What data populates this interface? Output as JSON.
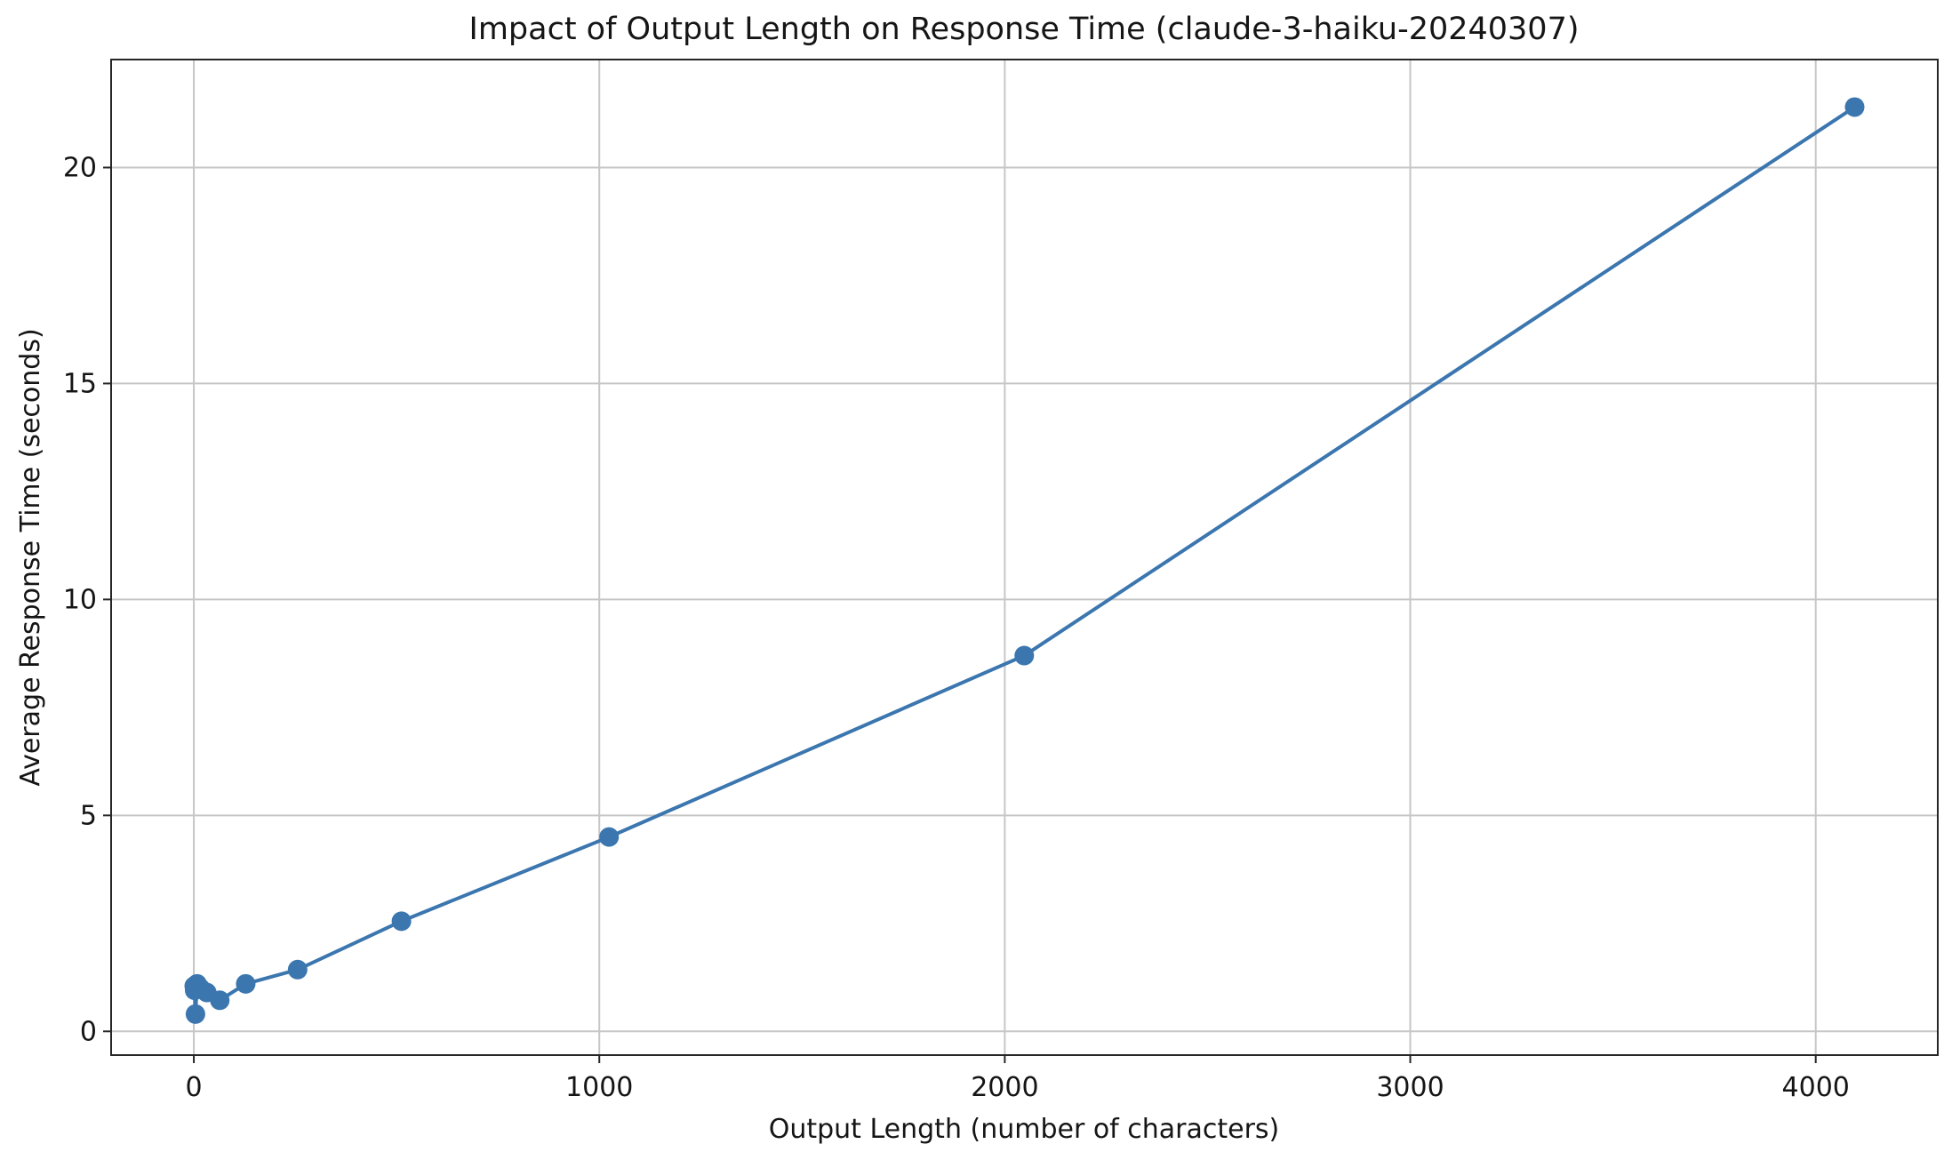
{
  "figure": {
    "background": "#ffffff"
  },
  "chart_data": {
    "type": "line",
    "title": "Impact of Output Length on Response Time (claude-3-haiku-20240307)",
    "xlabel": "Output Length (number of characters)",
    "ylabel": "Average Response Time (seconds)",
    "series": [
      {
        "name": "average-response-time",
        "x": [
          1,
          2,
          4,
          8,
          16,
          32,
          64,
          128,
          256,
          512,
          1024,
          2048,
          4096
        ],
        "y": [
          1.05,
          0.95,
          0.4,
          1.1,
          1.0,
          0.9,
          0.72,
          1.1,
          1.43,
          2.55,
          4.5,
          8.7,
          21.4
        ],
        "color": "#3b76af",
        "marker": "circle",
        "marker_radius": 11,
        "line_width": 4
      }
    ],
    "xticks": [
      0,
      1000,
      2000,
      3000,
      4000
    ],
    "yticks": [
      0,
      5,
      10,
      15,
      20
    ],
    "xlim": [
      -204,
      4301
    ],
    "ylim": [
      -0.55,
      22.5
    ],
    "grid": true,
    "grid_color": "#c6c6c6",
    "axis_color": "#262626",
    "legend_position": "none"
  }
}
